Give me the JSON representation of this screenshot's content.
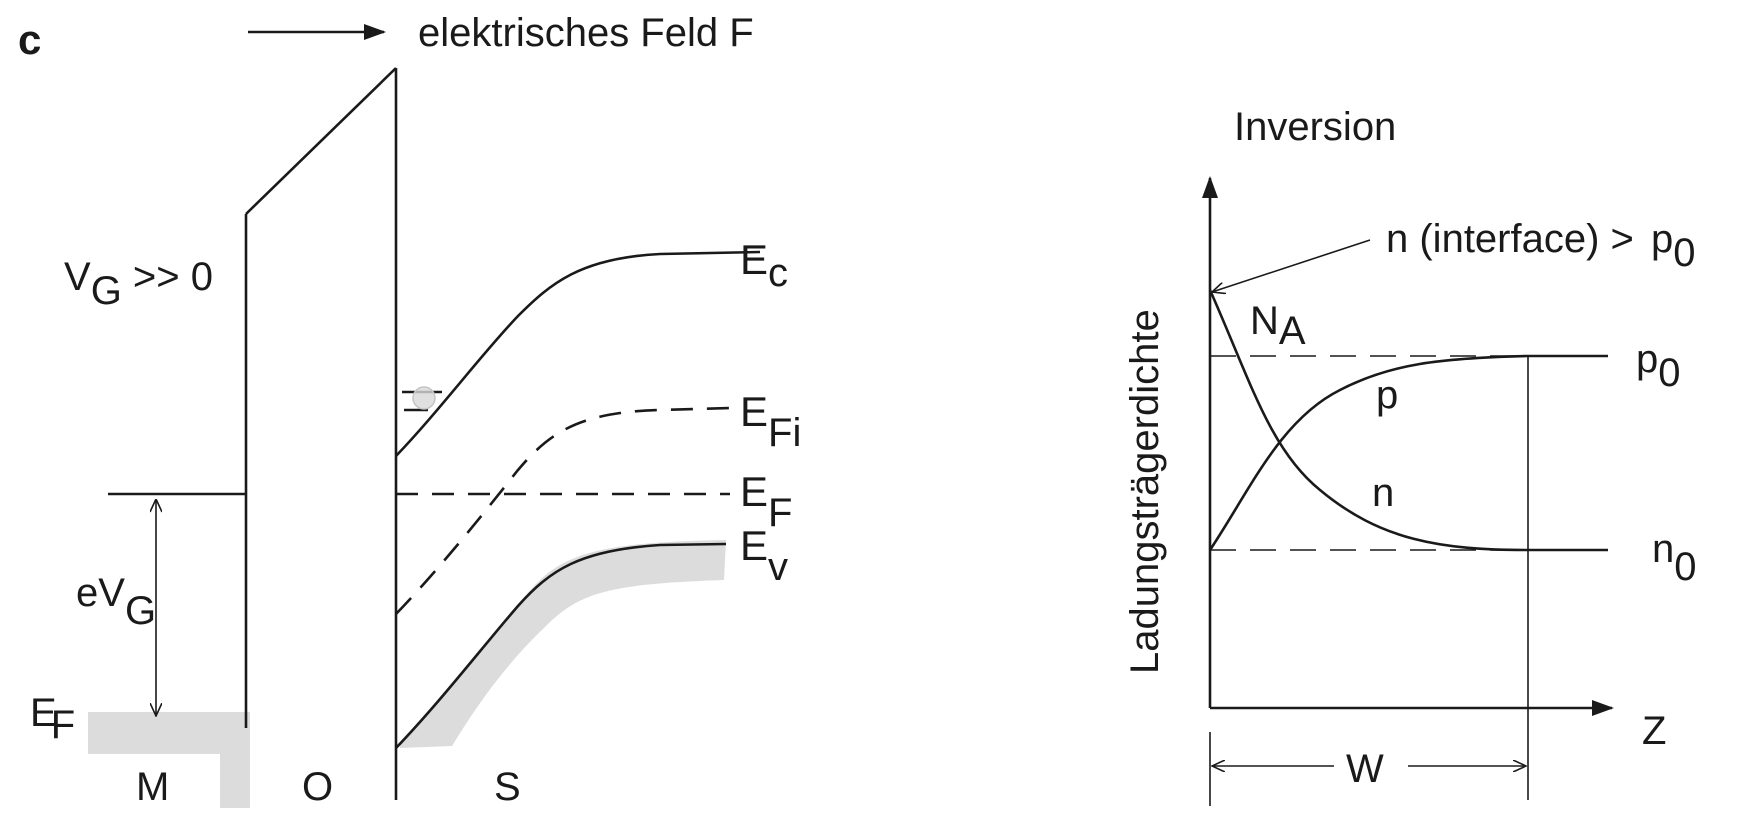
{
  "panel_label": "c",
  "left_diagram": {
    "field_label": "elektrisches Feld F",
    "gate_voltage": {
      "main": "V",
      "sub": "G",
      "rest": " >> 0"
    },
    "energy_labels": {
      "ec": {
        "main": "E",
        "sub": "c"
      },
      "efi": {
        "main": "E",
        "sub": "Fi"
      },
      "ef": {
        "main": "E",
        "sub": "F"
      },
      "ev": {
        "main": "E",
        "sub": "v"
      },
      "ef_metal": {
        "main": "E",
        "sub": "F"
      },
      "evg": {
        "main": "eV",
        "sub": "G"
      }
    },
    "regions": [
      "M",
      "O",
      "S"
    ]
  },
  "right_diagram": {
    "title": "Inversion",
    "y_axis_label": "Ladungsträgerdichte",
    "x_axis_label": "Z",
    "width_label": "W",
    "annotation": {
      "text": "n (interface) > ",
      "p_main": "p",
      "p_sub": "0"
    },
    "curve_labels": {
      "na": {
        "main": "N",
        "sub": "A"
      },
      "p": "p",
      "n": "n",
      "p0": {
        "main": "p",
        "sub": "0"
      },
      "n0": {
        "main": "n",
        "sub": "0"
      }
    }
  }
}
